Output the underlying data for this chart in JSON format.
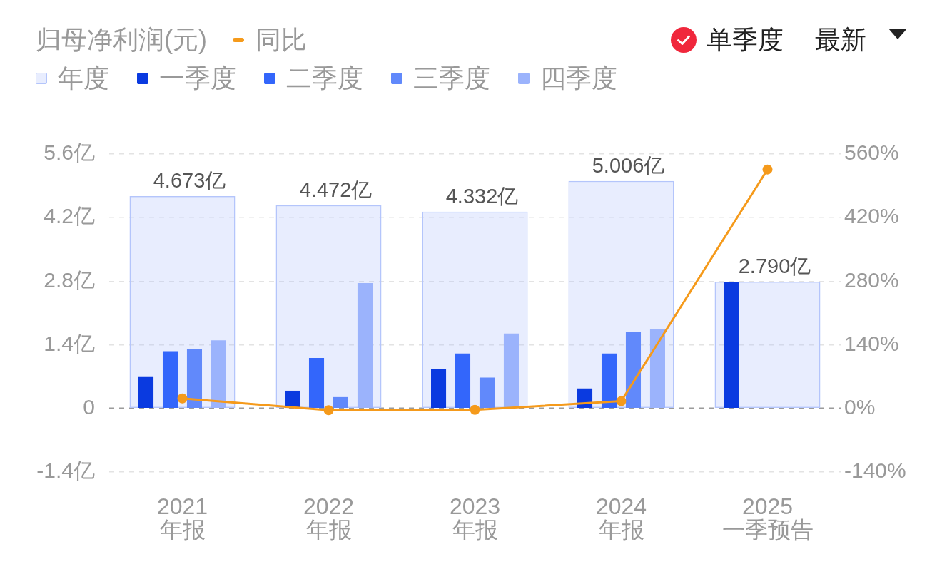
{
  "chart_data": {
    "type": "bar",
    "title": "归母净利润(元)",
    "annotations": [
      "单季度",
      "最新"
    ],
    "categories": [
      "2021\n年报",
      "2022\n年报",
      "2023\n年报",
      "2024\n年报",
      "2025\n一季预告"
    ],
    "series": [
      {
        "name": "年度",
        "color": "#b4c5fb",
        "values": [
          4.673,
          4.472,
          4.332,
          5.006,
          2.79
        ],
        "value_labels": [
          "4.673亿",
          "4.472亿",
          "4.332亿",
          "5.006亿",
          "2.790亿"
        ]
      },
      {
        "name": "一季度",
        "color": "#0a3ae0",
        "values": [
          0.69,
          0.39,
          0.87,
          0.44,
          2.79
        ]
      },
      {
        "name": "二季度",
        "color": "#3366fb",
        "values": [
          1.26,
          1.11,
          1.21,
          1.21,
          null
        ]
      },
      {
        "name": "三季度",
        "color": "#6189fb",
        "values": [
          1.31,
          0.25,
          0.68,
          1.69,
          null
        ]
      },
      {
        "name": "四季度",
        "color": "#9bb3fc",
        "values": [
          1.5,
          2.76,
          1.65,
          1.74,
          null
        ]
      },
      {
        "name": "同比",
        "type": "line",
        "axis": "y2",
        "color": "#f59a1b",
        "values": [
          22,
          -4,
          -3,
          16,
          526
        ]
      }
    ],
    "ylim": [
      -1.4,
      5.6
    ],
    "yticks": [
      {
        "value": -1.4,
        "label": "-1.4亿"
      },
      0,
      {
        "value": 1.4,
        "label": "1.4亿"
      },
      {
        "value": 2.8,
        "label": "2.8亿"
      },
      {
        "value": 4.2,
        "label": "4.2亿"
      },
      {
        "value": 5.6,
        "label": "5.6亿"
      }
    ],
    "y2lim": [
      -140,
      560
    ],
    "y2ticks": [
      {
        "value": -140,
        "label": "-140%"
      },
      {
        "value": 0,
        "label": "0%"
      },
      {
        "value": 140,
        "label": "140%"
      },
      {
        "value": 280,
        "label": "280%"
      },
      {
        "value": 420,
        "label": "420%"
      },
      {
        "value": 560,
        "label": "560%"
      }
    ],
    "ref_lines": [
      {
        "axis": "y",
        "value": 0,
        "color": "#9b9b9b",
        "line_style": "dashed"
      }
    ],
    "grid": "y",
    "legend": "top left",
    "marker": "circle"
  }
}
